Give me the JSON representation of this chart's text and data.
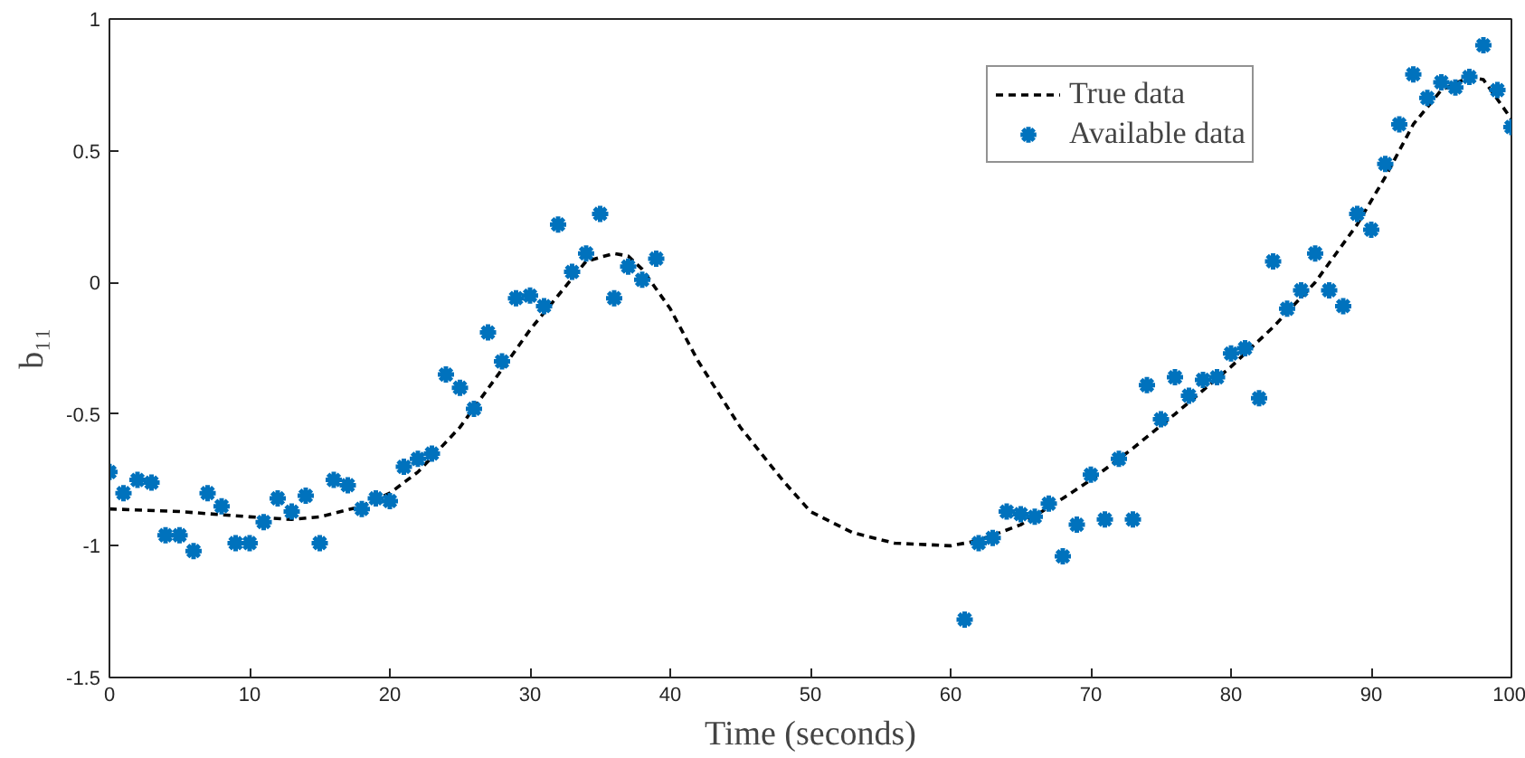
{
  "chart_data": {
    "type": "line",
    "xlabel": "Time (seconds)",
    "ylabel": "b₁₁",
    "xlim": [
      0,
      100
    ],
    "xticks": [
      0,
      10,
      20,
      30,
      40,
      50,
      60,
      70,
      80,
      90,
      100
    ],
    "ylim": [
      -1.5,
      1
    ],
    "yticks": [
      -1.5,
      -1,
      -0.5,
      0,
      0.5,
      1
    ],
    "grid": false,
    "legend": "top right",
    "series": [
      {
        "name": "True data",
        "color": "#000000",
        "line_style": "dashed",
        "marker": "none",
        "x": [
          0,
          5,
          10,
          13,
          15,
          18,
          20,
          22,
          25,
          28,
          30,
          32,
          34,
          36,
          37,
          38,
          40,
          42,
          45,
          48,
          50,
          53,
          56,
          60,
          62,
          65,
          68,
          70,
          73,
          76,
          80,
          83,
          86,
          89,
          91,
          93,
          95,
          97,
          98,
          100
        ],
        "values": [
          -0.86,
          -0.87,
          -0.89,
          -0.9,
          -0.89,
          -0.85,
          -0.8,
          -0.72,
          -0.55,
          -0.33,
          -0.18,
          -0.05,
          0.08,
          0.11,
          0.1,
          0.05,
          -0.1,
          -0.3,
          -0.55,
          -0.75,
          -0.87,
          -0.95,
          -0.99,
          -1.0,
          -0.98,
          -0.92,
          -0.82,
          -0.75,
          -0.63,
          -0.5,
          -0.32,
          -0.17,
          0.0,
          0.22,
          0.4,
          0.6,
          0.73,
          0.78,
          0.77,
          0.62
        ]
      },
      {
        "name": "Available data",
        "type": "scatter",
        "color": "#0072bd",
        "marker": "cross",
        "x": [
          0,
          1,
          2,
          3,
          4,
          5,
          6,
          7,
          8,
          9,
          10,
          11,
          12,
          13,
          14,
          15,
          16,
          17,
          18,
          19,
          20,
          21,
          22,
          23,
          24,
          25,
          26,
          27,
          28,
          29,
          30,
          31,
          32,
          33,
          34,
          35,
          36,
          37,
          38,
          39,
          61,
          62,
          63,
          64,
          65,
          66,
          67,
          68,
          69,
          70,
          71,
          72,
          73,
          74,
          75,
          76,
          77,
          78,
          79,
          80,
          81,
          82,
          83,
          84,
          85,
          86,
          87,
          88,
          89,
          90,
          91,
          92,
          93,
          94,
          95,
          96,
          97,
          98,
          99,
          100
        ],
        "values": [
          -0.72,
          -0.8,
          -0.75,
          -0.76,
          -0.96,
          -0.96,
          -1.02,
          -0.8,
          -0.85,
          -0.99,
          -0.99,
          -0.91,
          -0.82,
          -0.87,
          -0.81,
          -0.99,
          -0.75,
          -0.77,
          -0.86,
          -0.82,
          -0.83,
          -0.7,
          -0.67,
          -0.65,
          -0.35,
          -0.4,
          -0.48,
          -0.19,
          -0.3,
          -0.06,
          -0.05,
          -0.09,
          0.22,
          0.04,
          0.11,
          0.26,
          -0.06,
          0.06,
          0.01,
          0.09,
          -1.28,
          -0.99,
          -0.97,
          -0.87,
          -0.88,
          -0.89,
          -0.84,
          -1.04,
          -0.92,
          -0.73,
          -0.9,
          -0.67,
          -0.9,
          -0.39,
          -0.52,
          -0.36,
          -0.43,
          -0.37,
          -0.36,
          -0.27,
          -0.25,
          -0.44,
          0.08,
          -0.1,
          -0.03,
          0.11,
          -0.03,
          -0.09,
          0.26,
          0.2,
          0.45,
          0.6,
          0.79,
          0.7,
          0.76,
          0.74,
          0.78,
          0.9,
          0.73,
          0.59
        ]
      }
    ]
  }
}
